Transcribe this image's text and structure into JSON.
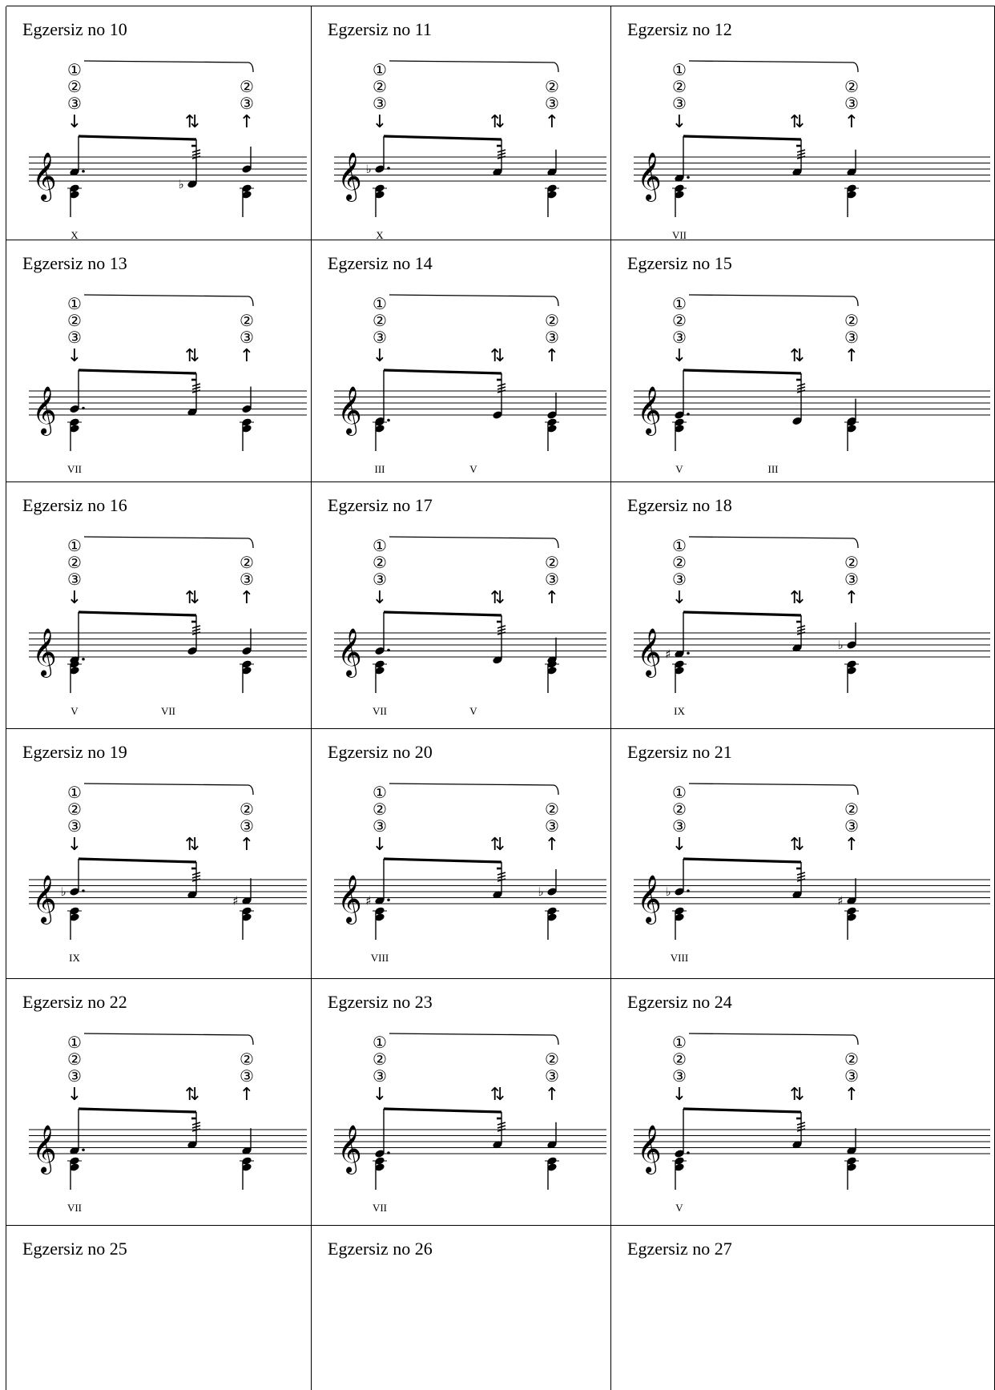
{
  "exercises": [
    {
      "title": "Egzersiz no 10",
      "notes": {
        "n1": {
          "pitch": "A",
          "accidental": ""
        },
        "n2": {
          "pitch": "D",
          "accidental": "flat"
        },
        "n3": {
          "pitch": "B",
          "accidental": ""
        }
      },
      "positions": [
        "X"
      ]
    },
    {
      "title": "Egzersiz no 11",
      "notes": {
        "n1": {
          "pitch": "B",
          "accidental": "flat"
        },
        "n2": {
          "pitch": "A",
          "accidental": ""
        },
        "n3": {
          "pitch": "A",
          "accidental": ""
        }
      },
      "positions": [
        "X"
      ]
    },
    {
      "title": "Egzersiz no 12",
      "notes": {
        "n1": {
          "pitch": "F",
          "accidental": ""
        },
        "n2": {
          "pitch": "A",
          "accidental": ""
        },
        "n3": {
          "pitch": "A",
          "accidental": ""
        }
      },
      "positions": [
        "VII"
      ]
    },
    {
      "title": "Egzersiz no 13",
      "notes": {
        "n1": {
          "pitch": "G",
          "accidental": ""
        },
        "n2": {
          "pitch": "F",
          "accidental": ""
        },
        "n3": {
          "pitch": "G",
          "accidental": ""
        }
      },
      "positions": [
        "VII"
      ]
    },
    {
      "title": "Egzersiz no 14",
      "notes": {
        "n1": {
          "pitch": "C",
          "accidental": ""
        },
        "n2": {
          "pitch": "E",
          "accidental": ""
        },
        "n3": {
          "pitch": "E",
          "accidental": ""
        }
      },
      "positions": [
        "III",
        "V"
      ]
    },
    {
      "title": "Egzersiz no 15",
      "notes": {
        "n1": {
          "pitch": "E",
          "accidental": ""
        },
        "n2": {
          "pitch": "C",
          "accidental": ""
        },
        "n3": {
          "pitch": "C",
          "accidental": ""
        }
      },
      "positions": [
        "V",
        "III"
      ]
    },
    {
      "title": "Egzersiz no 16",
      "notes": {
        "n1": {
          "pitch": "D",
          "accidental": ""
        },
        "n2": {
          "pitch": "G",
          "accidental": ""
        },
        "n3": {
          "pitch": "G",
          "accidental": ""
        }
      },
      "positions": [
        "V",
        "VII"
      ]
    },
    {
      "title": "Egzersiz no 17",
      "notes": {
        "n1": {
          "pitch": "G",
          "accidental": ""
        },
        "n2": {
          "pitch": "D",
          "accidental": ""
        },
        "n3": {
          "pitch": "D",
          "accidental": ""
        }
      },
      "positions": [
        "VII",
        "V"
      ]
    },
    {
      "title": "Egzersiz no 18",
      "notes": {
        "n1": {
          "pitch": "F",
          "accidental": "sharp"
        },
        "n2": {
          "pitch": "A",
          "accidental": ""
        },
        "n3": {
          "pitch": "B",
          "accidental": "flat"
        }
      },
      "positions": [
        "IX"
      ]
    },
    {
      "title": "Egzersiz no 19",
      "notes": {
        "n1": {
          "pitch": "B",
          "accidental": "flat"
        },
        "n2": {
          "pitch": "A",
          "accidental": ""
        },
        "n3": {
          "pitch": "F",
          "accidental": "sharp"
        }
      },
      "positions": [
        "IX"
      ]
    },
    {
      "title": "Egzersiz no 20",
      "notes": {
        "n1": {
          "pitch": "F",
          "accidental": "sharp"
        },
        "n2": {
          "pitch": "A",
          "accidental": ""
        },
        "n3": {
          "pitch": "B",
          "accidental": "flat"
        }
      },
      "positions": [
        "VIII"
      ]
    },
    {
      "title": "Egzersiz no 21",
      "notes": {
        "n1": {
          "pitch": "B",
          "accidental": "flat"
        },
        "n2": {
          "pitch": "A",
          "accidental": ""
        },
        "n3": {
          "pitch": "F",
          "accidental": "sharp"
        }
      },
      "positions": [
        "VIII"
      ]
    },
    {
      "title": "Egzersiz no 22",
      "notes": {
        "n1": {
          "pitch": "F",
          "accidental": ""
        },
        "n2": {
          "pitch": "A",
          "accidental": ""
        },
        "n3": {
          "pitch": "F",
          "accidental": ""
        }
      },
      "positions": [
        "VII"
      ]
    },
    {
      "title": "Egzersiz no 23",
      "notes": {
        "n1": {
          "pitch": "E",
          "accidental": ""
        },
        "n2": {
          "pitch": "A",
          "accidental": ""
        },
        "n3": {
          "pitch": "A",
          "accidental": ""
        }
      },
      "positions": [
        "VII"
      ]
    },
    {
      "title": "Egzersiz no 24",
      "notes": {
        "n1": {
          "pitch": "E",
          "accidental": ""
        },
        "n2": {
          "pitch": "A",
          "accidental": ""
        },
        "n3": {
          "pitch": "F",
          "accidental": ""
        }
      },
      "positions": [
        "V"
      ]
    },
    {
      "title": "Egzersiz no 25"
    },
    {
      "title": "Egzersiz no 26"
    },
    {
      "title": "Egzersiz no 27"
    }
  ],
  "string_marks": {
    "start": [
      "①",
      "②",
      "③"
    ],
    "end": [
      "②",
      "③"
    ]
  },
  "stroke_symbols": {
    "down": "↓",
    "up": "↑",
    "tremolo": "⇅"
  },
  "glyphs": {
    "clef": "treble-clef-icon",
    "flat": "♭",
    "sharp": "♯"
  }
}
